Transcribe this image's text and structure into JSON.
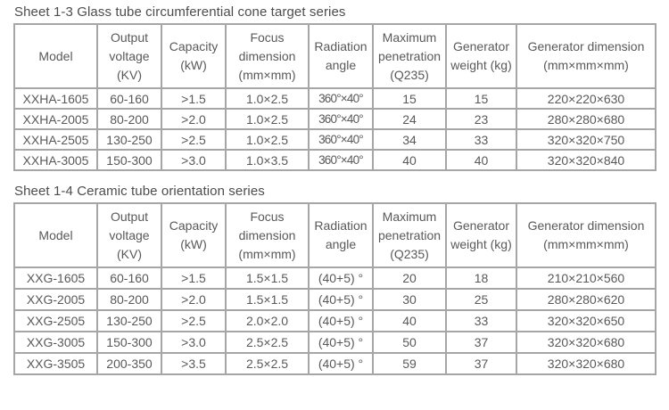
{
  "colors": {
    "background": "#ffffff",
    "border": "#a6a6a6",
    "text": "#595959",
    "title": "#4d4d4d"
  },
  "tables": [
    {
      "title": "Sheet 1-3 Glass tube circumferential cone target series",
      "headers": [
        "Model",
        "Output voltage (KV)",
        "Capacity (kW)",
        "Focus dimension (mm×mm)",
        "Radiation angle",
        "Maximum penetration (Q235)",
        "Generator weight (kg)",
        "Generator dimension (mm×mm×mm)"
      ],
      "rows": [
        [
          "XXHA-1605",
          "60-160",
          ">1.5",
          "1.0×2.5",
          "360°×40°",
          "15",
          "15",
          "220×220×630"
        ],
        [
          "XXHA-2005",
          "80-200",
          ">2.0",
          "1.0×2.5",
          "360°×40°",
          "24",
          "23",
          "280×280×680"
        ],
        [
          "XXHA-2505",
          "130-250",
          ">2.5",
          "1.0×2.5",
          "360°×40°",
          "34",
          "33",
          "320×320×750"
        ],
        [
          "XXHA-3005",
          "150-300",
          ">3.0",
          "1.0×3.5",
          "360°×40°",
          "40",
          "40",
          "320×320×840"
        ]
      ]
    },
    {
      "title": "Sheet 1-4 Ceramic tube orientation series",
      "headers": [
        "Model",
        "Output voltage (KV)",
        "Capacity (kW)",
        "Focus dimension (mm×mm)",
        "Radiation angle",
        "Maximum penetration (Q235)",
        "Generator weight (kg)",
        "Generator dimension (mm×mm×mm)"
      ],
      "rows": [
        [
          "XXG-1605",
          "60-160",
          ">1.5",
          "1.5×1.5",
          "(40+5) °",
          "20",
          "18",
          "210×210×560"
        ],
        [
          "XXG-2005",
          "80-200",
          ">2.0",
          "1.5×1.5",
          "(40+5) °",
          "30",
          "25",
          "280×280×620"
        ],
        [
          "XXG-2505",
          "130-250",
          ">2.5",
          "2.0×2.0",
          "(40+5) °",
          "40",
          "33",
          "320×320×650"
        ],
        [
          "XXG-3005",
          "150-300",
          ">3.0",
          "2.5×2.5",
          "(40+5) °",
          "50",
          "37",
          "320×320×680"
        ],
        [
          "XXG-3505",
          "200-350",
          ">3.5",
          "2.5×2.5",
          "(40+5) °",
          "59",
          "37",
          "320×320×680"
        ]
      ]
    }
  ]
}
